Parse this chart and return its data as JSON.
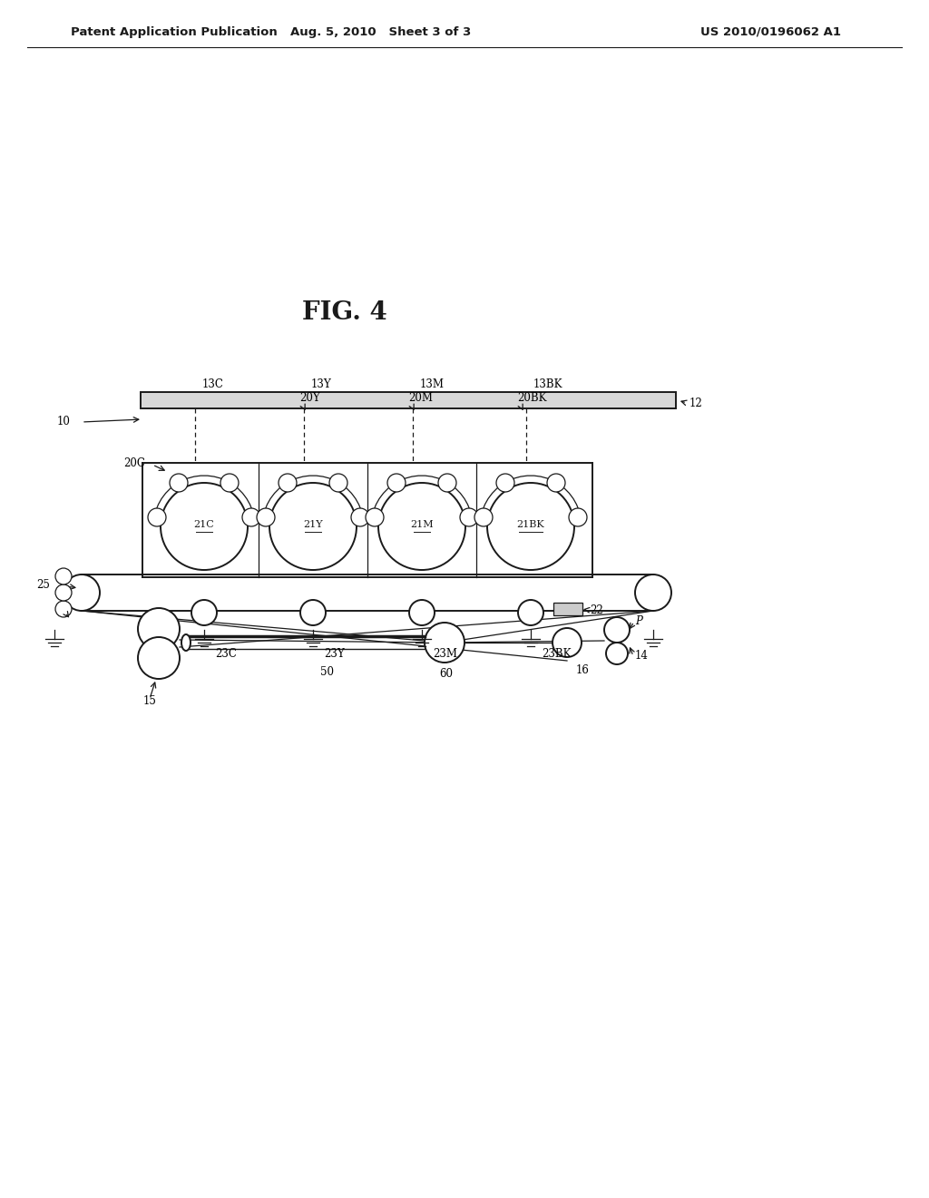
{
  "title": "FIG. 4",
  "header_left": "Patent Application Publication",
  "header_center": "Aug. 5, 2010   Sheet 3 of 3",
  "header_right": "US 2010/0196062 A1",
  "bg_color": "#ffffff",
  "text_color": "#1a1a1a",
  "label_fontsize": 8.5,
  "title_fontsize": 20,
  "header_fontsize": 9.5
}
